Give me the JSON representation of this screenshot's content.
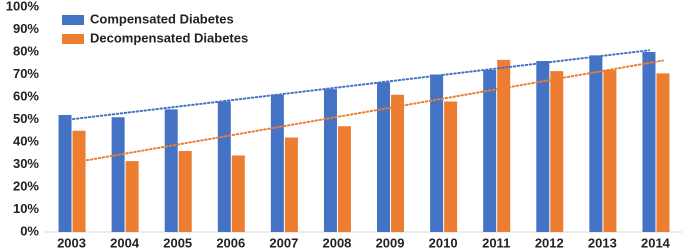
{
  "chart_data": {
    "type": "bar",
    "categories": [
      "2003",
      "2004",
      "2005",
      "2006",
      "2007",
      "2008",
      "2009",
      "2010",
      "2011",
      "2012",
      "2013",
      "2014"
    ],
    "series": [
      {
        "name": "Compensated Diabetes",
        "color": "#4472c4",
        "values": [
          52,
          51,
          54.5,
          58,
          61,
          63.5,
          66.5,
          70,
          72,
          76,
          78.5,
          80
        ]
      },
      {
        "name": "Decompensated Diabetes",
        "color": "#ed7d31",
        "values": [
          45,
          31.5,
          36,
          34,
          42,
          47,
          61,
          58,
          76.5,
          71.5,
          72,
          70.5
        ]
      }
    ],
    "ylim": [
      0,
      100
    ],
    "yticks": [
      {
        "value": 0,
        "label": "0%"
      },
      {
        "value": 10,
        "label": "10%"
      },
      {
        "value": 20,
        "label": "20%"
      },
      {
        "value": 30,
        "label": "30%"
      },
      {
        "value": 40,
        "label": "40%"
      },
      {
        "value": 50,
        "label": "50%"
      },
      {
        "value": 60,
        "label": "60%"
      },
      {
        "value": 70,
        "label": "70%"
      },
      {
        "value": 80,
        "label": "80%"
      },
      {
        "value": 90,
        "label": "90%"
      },
      {
        "value": 100,
        "label": "100%"
      }
    ],
    "grid": false,
    "trendline": true,
    "legend": "top-left"
  }
}
